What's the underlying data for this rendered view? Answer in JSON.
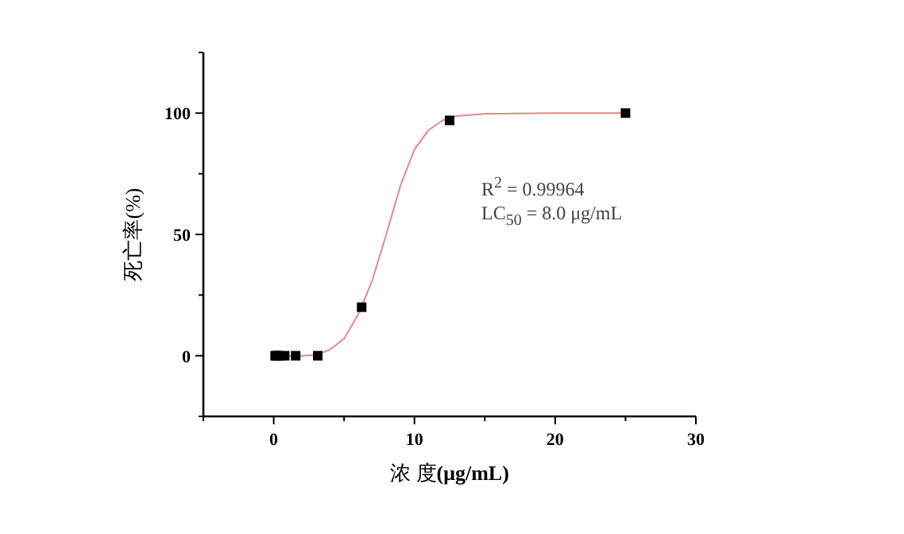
{
  "chart_data": {
    "type": "scatter",
    "xlabel": "浓 度**(μg/mL)**",
    "ylabel": "死亡率(%)",
    "xlim": [
      -5,
      30
    ],
    "ylim": [
      -25,
      125
    ],
    "xticks": [
      {
        "value": -5,
        "label": null
      },
      0,
      {
        "value": 5,
        "label": null
      },
      10,
      {
        "value": 15,
        "label": null
      },
      20,
      {
        "value": 25,
        "label": null
      },
      30
    ],
    "yticks": [
      {
        "value": -25,
        "label": null
      },
      0,
      {
        "value": 25,
        "label": null
      },
      50,
      {
        "value": 75,
        "label": null
      },
      100,
      {
        "value": 125,
        "label": null
      }
    ],
    "grid": false,
    "annotations": [
      "R$^{2}$ = 0.99964",
      "LC$_{50}$ = 8.0 μg/mL"
    ],
    "series": [
      {
        "type": "line",
        "color": "#e08a8a",
        "marker": "none",
        "line_style": "solid",
        "x": [
          0,
          2,
          3,
          4,
          5,
          6,
          7,
          8,
          9,
          10,
          11,
          12,
          13,
          15,
          20,
          25
        ],
        "values": [
          0,
          0,
          0.3,
          2.5,
          7,
          17,
          31,
          50,
          70,
          85,
          93,
          97,
          98.8,
          99.7,
          100,
          100
        ]
      },
      {
        "color": "#000000",
        "marker": "square",
        "x": [
          0.1,
          0.2,
          0.39,
          0.78,
          1.56,
          3.13,
          6.25,
          12.5,
          25
        ],
        "values": [
          0,
          0,
          0,
          0,
          0,
          0,
          20,
          97,
          100
        ]
      }
    ]
  }
}
